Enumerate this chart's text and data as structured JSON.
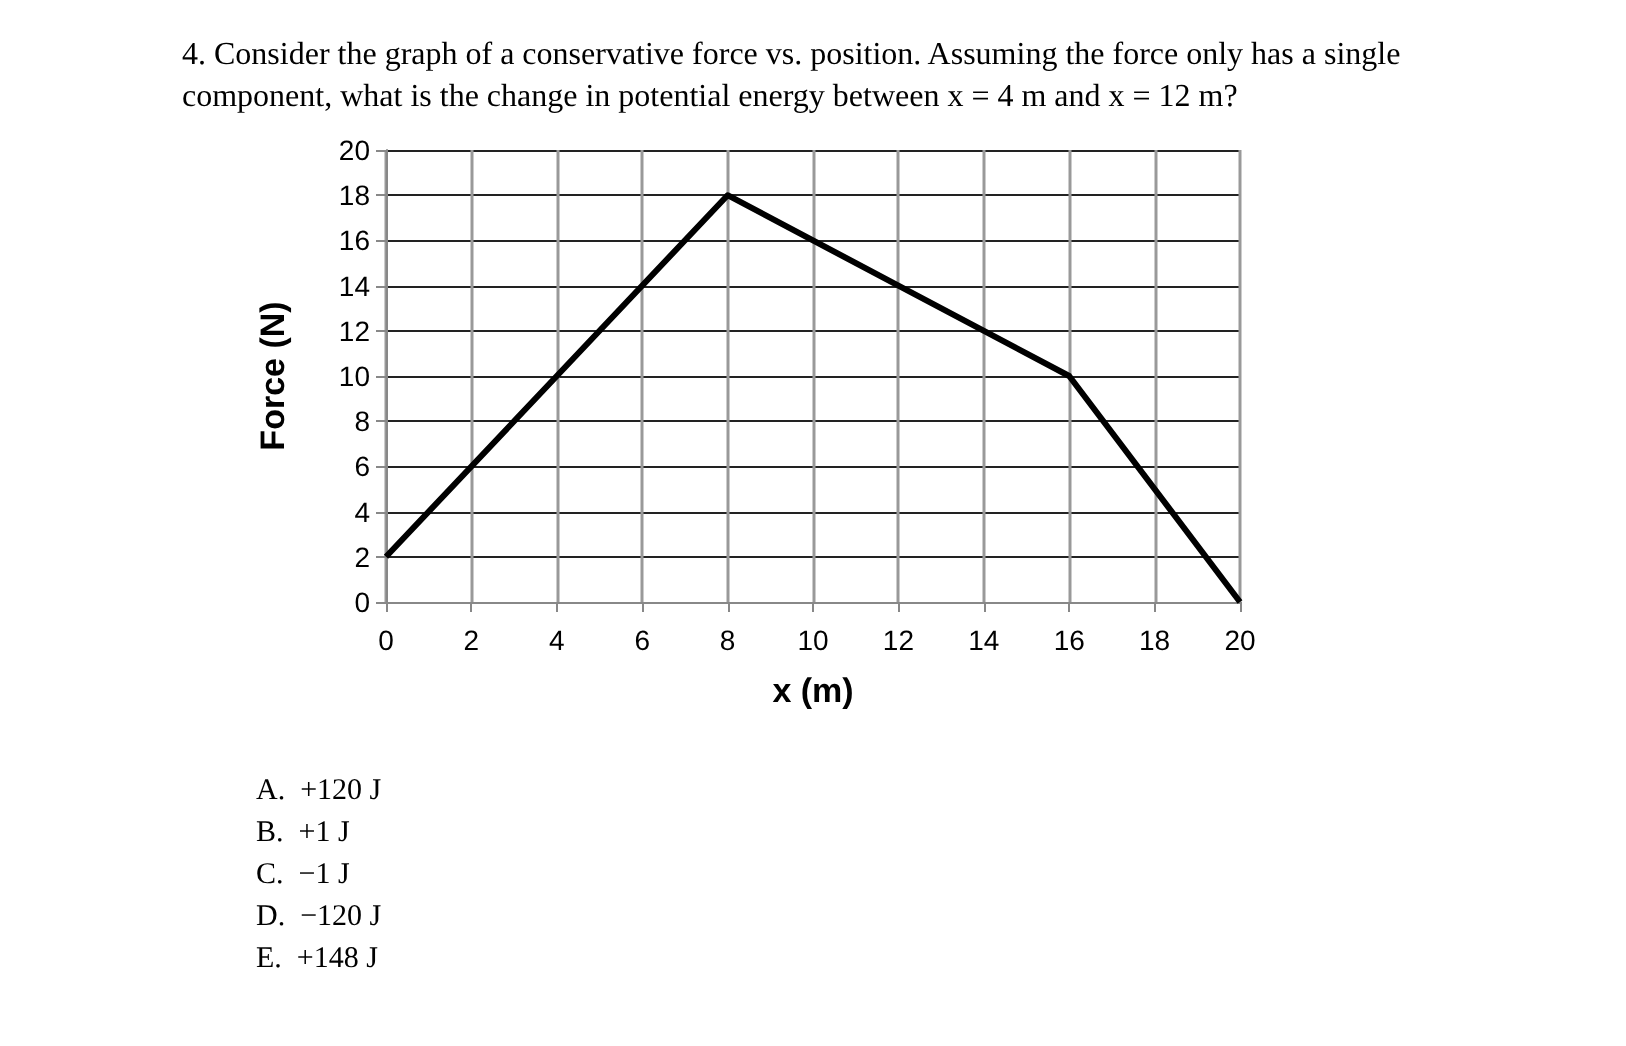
{
  "chart_data": {
    "type": "line",
    "title": "4. Consider the graph of a conservative force vs. position. Assuming the force only has a single component, what is the change in potential energy between x = 4 m and x = 12 m?",
    "xlabel": "x (m)",
    "ylabel": "Force (N)",
    "x": [
      0,
      4,
      8,
      12,
      16,
      20
    ],
    "series": [
      {
        "color": "#000000",
        "values": [
          2,
          10,
          18,
          14,
          10,
          0
        ]
      }
    ],
    "xlim": [
      0,
      20
    ],
    "xticks": [
      0,
      2,
      4,
      6,
      8,
      10,
      12,
      14,
      16,
      18,
      20
    ],
    "ylim": [
      0,
      20
    ],
    "yticks": [
      0,
      2,
      4,
      6,
      8,
      10,
      12,
      14,
      16,
      18,
      20
    ],
    "grid": true,
    "marker": "none",
    "line_style": "solid",
    "annotations": [
      "A.  +120 J",
      "B.  +1 J",
      "C.  −1 J",
      "D.  −120 J",
      "E.  +148 J"
    ]
  }
}
